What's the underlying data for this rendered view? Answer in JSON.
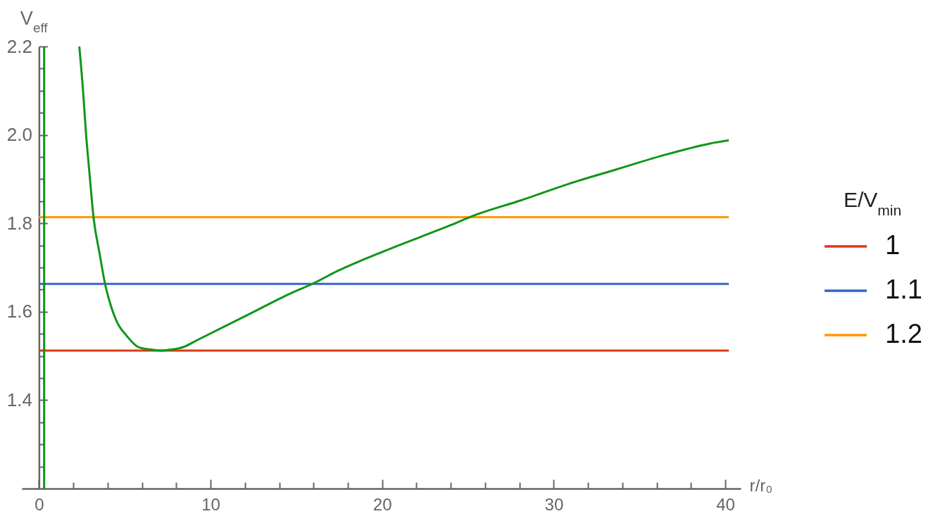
{
  "chart_data": {
    "type": "line",
    "xlabel": "r/r₀",
    "ylabel": "V$_{eff}$",
    "legend_title": "E/V$_{min}$",
    "legend": "right",
    "xlim": [
      -1,
      40.9
    ],
    "ylim": [
      1.2,
      2.2
    ],
    "xticks": [
      0,
      {
        "value": 2,
        "label": null
      },
      {
        "value": 4,
        "label": null
      },
      {
        "value": 6,
        "label": null
      },
      {
        "value": 8,
        "label": null
      },
      10,
      {
        "value": 12,
        "label": null
      },
      {
        "value": 14,
        "label": null
      },
      {
        "value": 16,
        "label": null
      },
      {
        "value": 18,
        "label": null
      },
      20,
      {
        "value": 22,
        "label": null
      },
      {
        "value": 24,
        "label": null
      },
      {
        "value": 26,
        "label": null
      },
      {
        "value": 28,
        "label": null
      },
      30,
      {
        "value": 32,
        "label": null
      },
      {
        "value": 34,
        "label": null
      },
      {
        "value": 36,
        "label": null
      },
      {
        "value": 38,
        "label": null
      },
      40
    ],
    "yticks": [
      {
        "value": 1.25,
        "label": null
      },
      {
        "value": 1.3,
        "label": null
      },
      {
        "value": 1.35,
        "label": null
      },
      1.4,
      {
        "value": 1.45,
        "label": null
      },
      {
        "value": 1.5,
        "label": null
      },
      {
        "value": 1.55,
        "label": null
      },
      1.6,
      {
        "value": 1.65,
        "label": null
      },
      {
        "value": 1.7,
        "label": null
      },
      {
        "value": 1.75,
        "label": null
      },
      1.8,
      {
        "value": 1.85,
        "label": null
      },
      {
        "value": 1.9,
        "label": null
      },
      {
        "value": 1.95,
        "label": null
      },
      {
        "value": 2,
        "label": "2.0"
      },
      {
        "value": 2.05,
        "label": null
      },
      {
        "value": 2.1,
        "label": null
      },
      {
        "value": 2.15,
        "label": null
      },
      2.2
    ],
    "series": [
      {
        "name": "1",
        "color": "#dc3912",
        "x": [
          0,
          40.2
        ],
        "values": [
          1.512,
          1.512
        ]
      },
      {
        "name": "1.1",
        "color": "#3366cc",
        "x": [
          0,
          40.2
        ],
        "values": [
          1.663,
          1.663
        ]
      },
      {
        "name": "1.2",
        "color": "#ff9900",
        "x": [
          0,
          40.2
        ],
        "values": [
          1.814,
          1.814
        ]
      },
      {
        "color": "#109618",
        "x": [
          0.3,
          0.3
        ],
        "values": [
          1.2,
          2.2
        ]
      },
      {
        "color": "#109618",
        "x": [
          2.35,
          2.56,
          2.74,
          2.95,
          3.18,
          3.54,
          3.85,
          4.17,
          4.58,
          5.1,
          5.8,
          6.6,
          7.1,
          7.6,
          8.4,
          9.23,
          11.97,
          14.7,
          15.93,
          17.44,
          20.18,
          24.0,
          25.37,
          28.1,
          30.85,
          33.58,
          36.31,
          39.05,
          40.2
        ],
        "values": [
          2.2,
          2.104,
          2.003,
          1.91,
          1.813,
          1.73,
          1.663,
          1.616,
          1.574,
          1.546,
          1.52,
          1.514,
          1.512,
          1.514,
          1.52,
          1.536,
          1.589,
          1.642,
          1.663,
          1.693,
          1.738,
          1.796,
          1.818,
          1.852,
          1.889,
          1.921,
          1.953,
          1.98,
          1.988
        ]
      }
    ]
  }
}
